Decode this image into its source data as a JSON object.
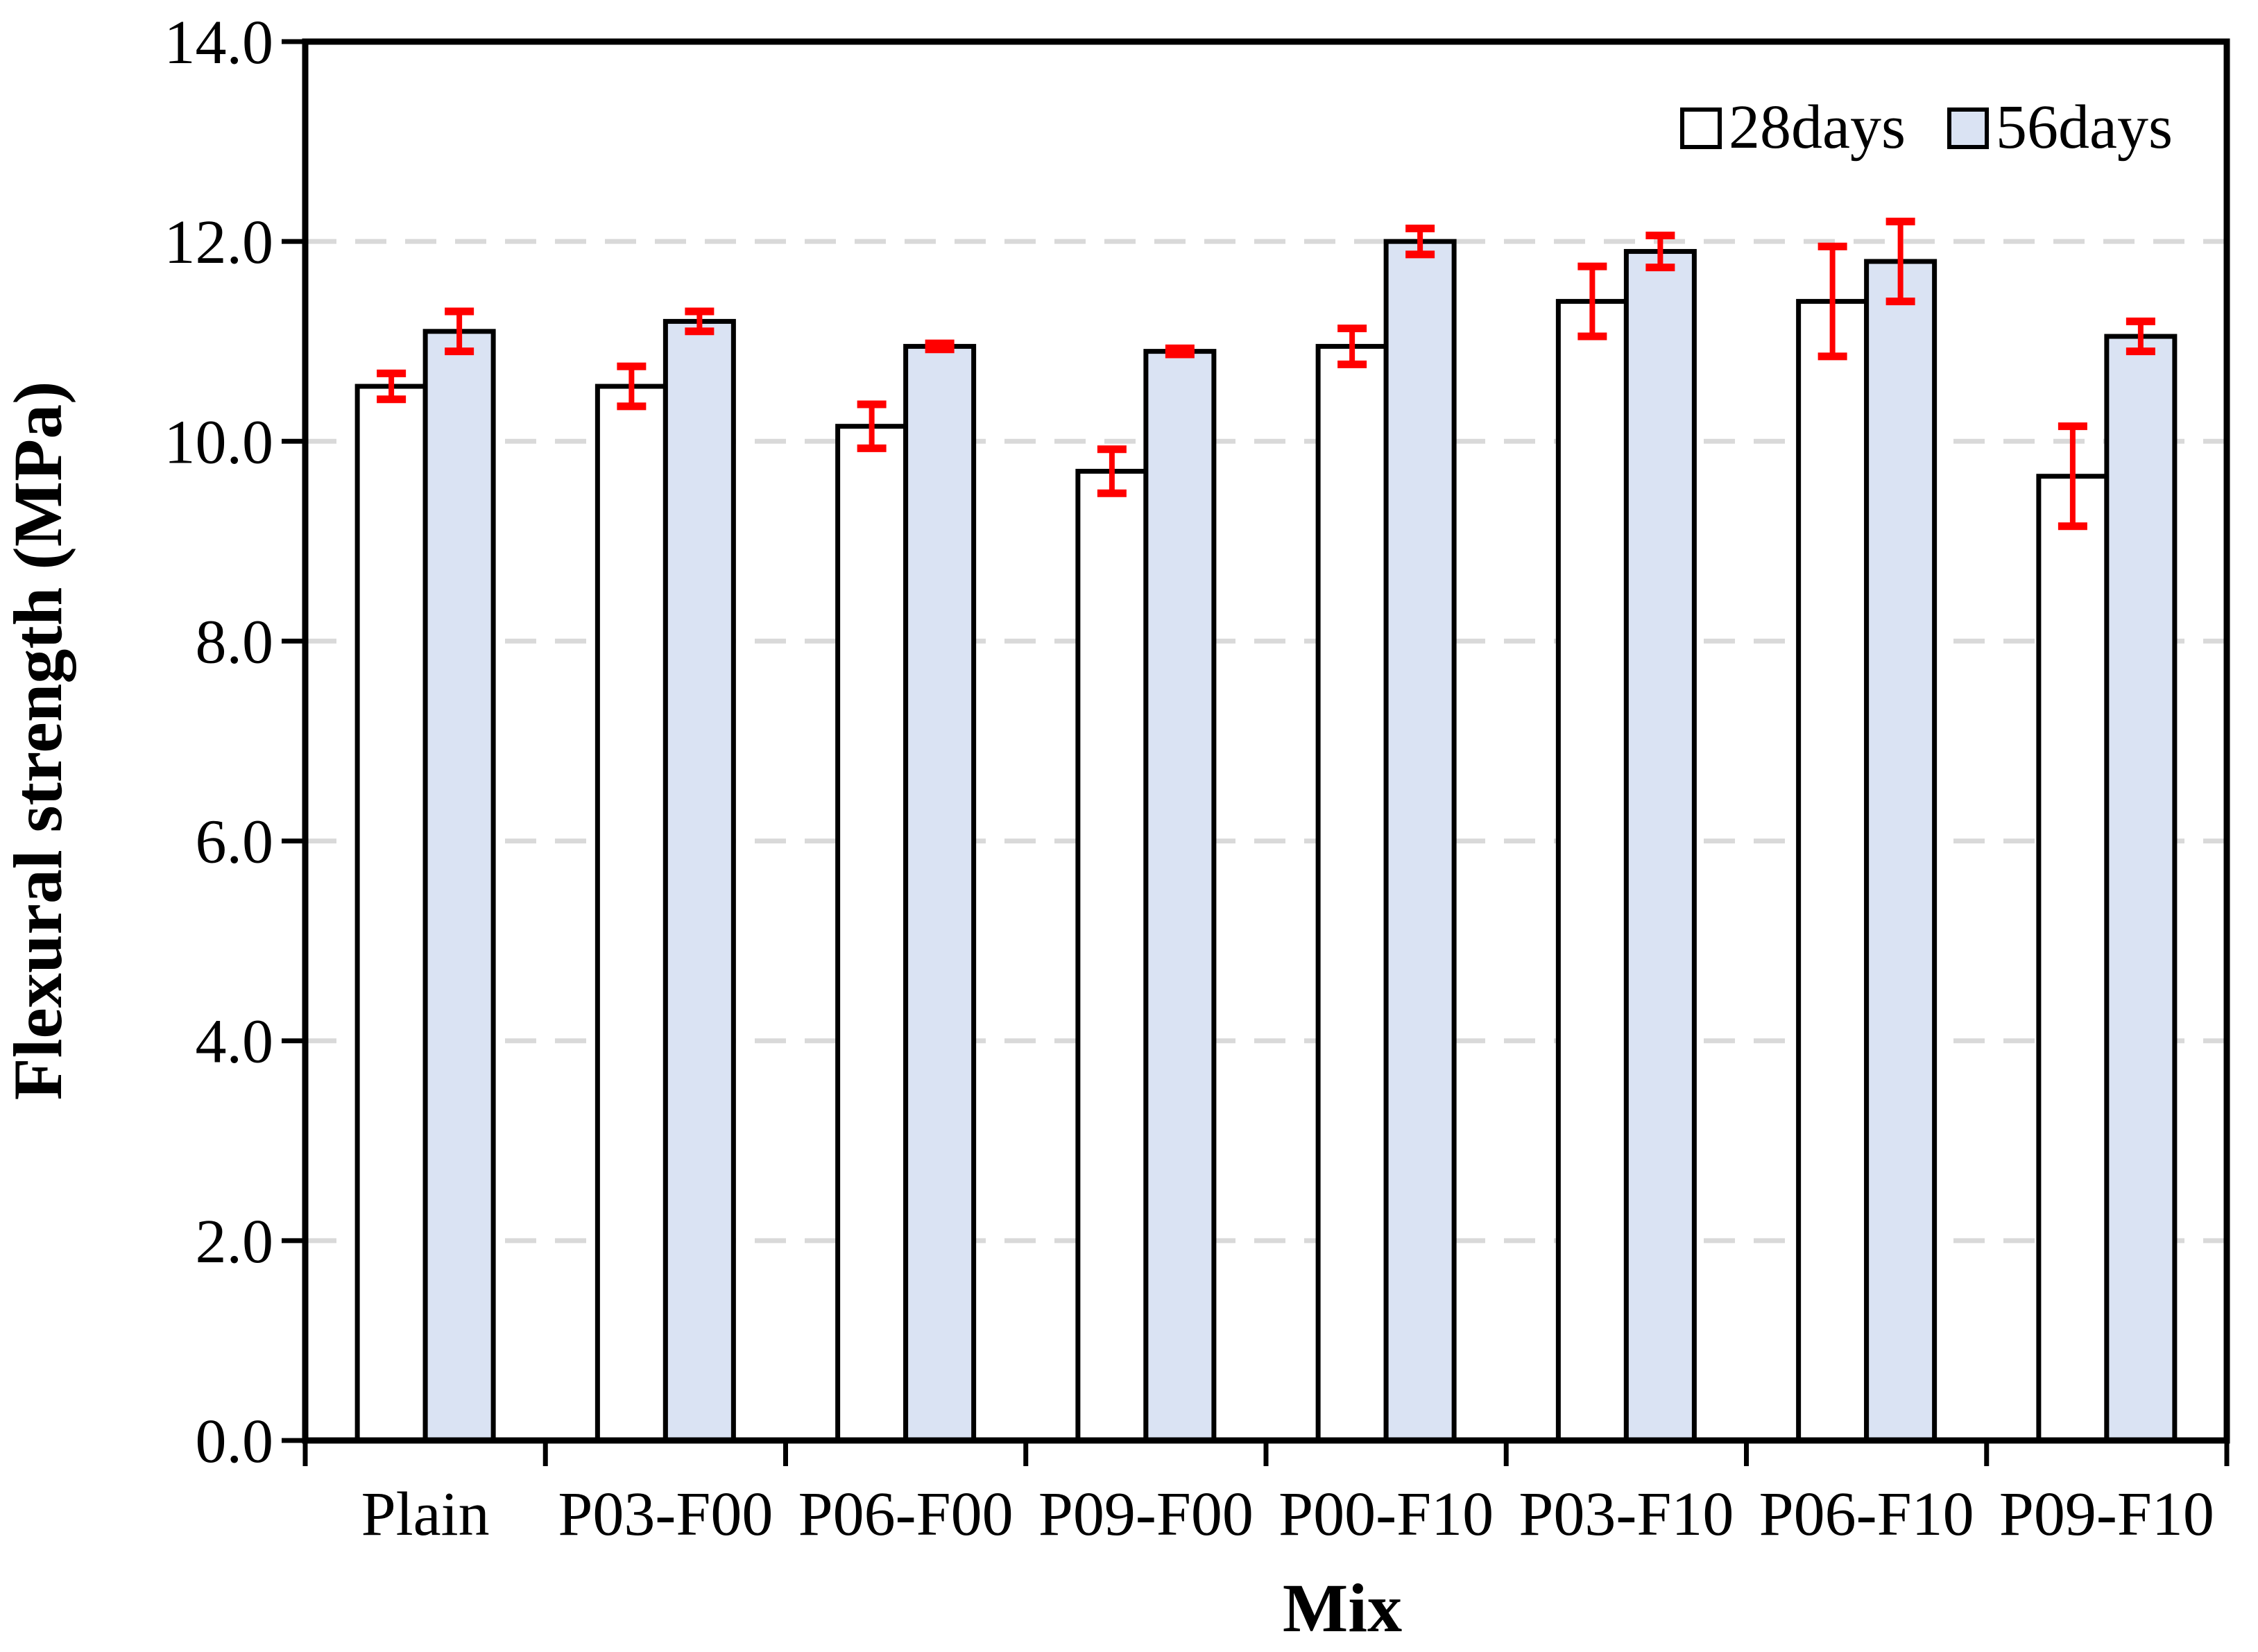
{
  "chart_data": {
    "type": "bar",
    "title": "",
    "xlabel": "Mix",
    "ylabel": "Flexural strength (MPa)",
    "categories": [
      "Plain",
      "P03-F00",
      "P06-F00",
      "P09-F00",
      "P00-F10",
      "P03-F10",
      "P06-F10",
      "P09-F10"
    ],
    "series": [
      {
        "name": "28days",
        "fill": "#FFFFFF",
        "values": [
          10.55,
          10.55,
          10.15,
          9.7,
          10.95,
          11.4,
          11.4,
          9.65
        ],
        "errors": [
          0.13,
          0.2,
          0.22,
          0.22,
          0.18,
          0.35,
          0.55,
          0.5
        ]
      },
      {
        "name": "56days",
        "fill": "#DAE3F3",
        "values": [
          11.1,
          11.2,
          10.95,
          10.9,
          12.0,
          11.9,
          11.8,
          11.05
        ],
        "errors": [
          0.2,
          0.1,
          0.03,
          0.03,
          0.13,
          0.16,
          0.4,
          0.15
        ]
      }
    ],
    "ylim": [
      0,
      14
    ],
    "ytick_step": 2,
    "ytick_labels": [
      "0.0",
      "2.0",
      "4.0",
      "6.0",
      "8.0",
      "10.0",
      "12.0",
      "14.0"
    ],
    "grid": "horizontal dashed gridlines at 2.0 intervals",
    "gridline_color": "#D9D9D9",
    "error_bar_color": "#FF0000",
    "bar_border_color": "#000000",
    "legend_position": "top-right inside plot"
  }
}
